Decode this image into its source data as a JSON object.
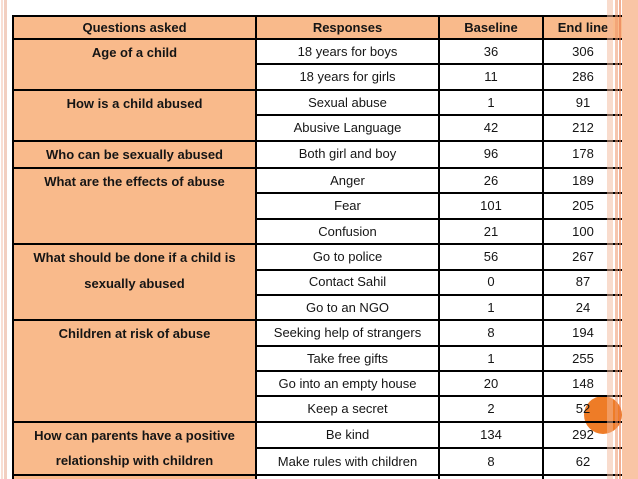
{
  "table": {
    "headers": [
      "Questions asked",
      "Responses",
      "Baseline",
      "End line"
    ],
    "groups": [
      {
        "question": "Age of a child",
        "rows": [
          {
            "response": "18 years for boys",
            "baseline": "36",
            "endline": "306"
          },
          {
            "response": "18 years for girls",
            "baseline": "11",
            "endline": "286"
          }
        ]
      },
      {
        "question": "How is a child abused",
        "rows": [
          {
            "response": "Sexual abuse",
            "baseline": "1",
            "endline": "91"
          },
          {
            "response": "Abusive Language",
            "baseline": "42",
            "endline": "212"
          }
        ]
      },
      {
        "question": "Who can be sexually abused",
        "rows": [
          {
            "response": "Both girl and boy",
            "baseline": "96",
            "endline": "178"
          }
        ]
      },
      {
        "question": "What are the effects of abuse",
        "rows": [
          {
            "response": "Anger",
            "baseline": "26",
            "endline": "189"
          },
          {
            "response": "Fear",
            "baseline": "101",
            "endline": "205"
          },
          {
            "response": "Confusion",
            "baseline": "21",
            "endline": "100"
          }
        ]
      },
      {
        "question": "What should be done if a child is sexually abused",
        "rows": [
          {
            "response": "Go to police",
            "baseline": "56",
            "endline": "267"
          },
          {
            "response": "Contact Sahil",
            "baseline": "0",
            "endline": "87"
          },
          {
            "response": "Go to an NGO",
            "baseline": "1",
            "endline": "24"
          }
        ]
      },
      {
        "question": "Children at risk of abuse",
        "rows": [
          {
            "response": "Seeking help of strangers",
            "baseline": "8",
            "endline": "194"
          },
          {
            "response": "Take free gifts",
            "baseline": "1",
            "endline": "255"
          },
          {
            "response": "Go into an empty house",
            "baseline": "20",
            "endline": "148"
          },
          {
            "response": "Keep a secret",
            "baseline": "2",
            "endline": "52"
          }
        ]
      },
      {
        "question": "How can parents have a positive relationship with children",
        "rows": [
          {
            "response": "Be kind",
            "baseline": "134",
            "endline": "292"
          },
          {
            "response": "Make rules with children",
            "baseline": "8",
            "endline": "62"
          }
        ]
      },
      {
        "question": "",
        "rows": [
          {
            "response": "",
            "baseline": "",
            "endline": ""
          }
        ]
      }
    ]
  },
  "orange_circle": {
    "overlapped_endline_values": [
      "52",
      "292"
    ],
    "overlaps_responses": [
      "Keep a secret",
      "Be kind"
    ]
  },
  "colors": {
    "cell_peach": "#f9ba8b",
    "circle_orange": "#ee7c27",
    "right_band_peach": "#f9c5a5",
    "border_black": "#000000",
    "stripe_pink": "#f2cfc0"
  }
}
